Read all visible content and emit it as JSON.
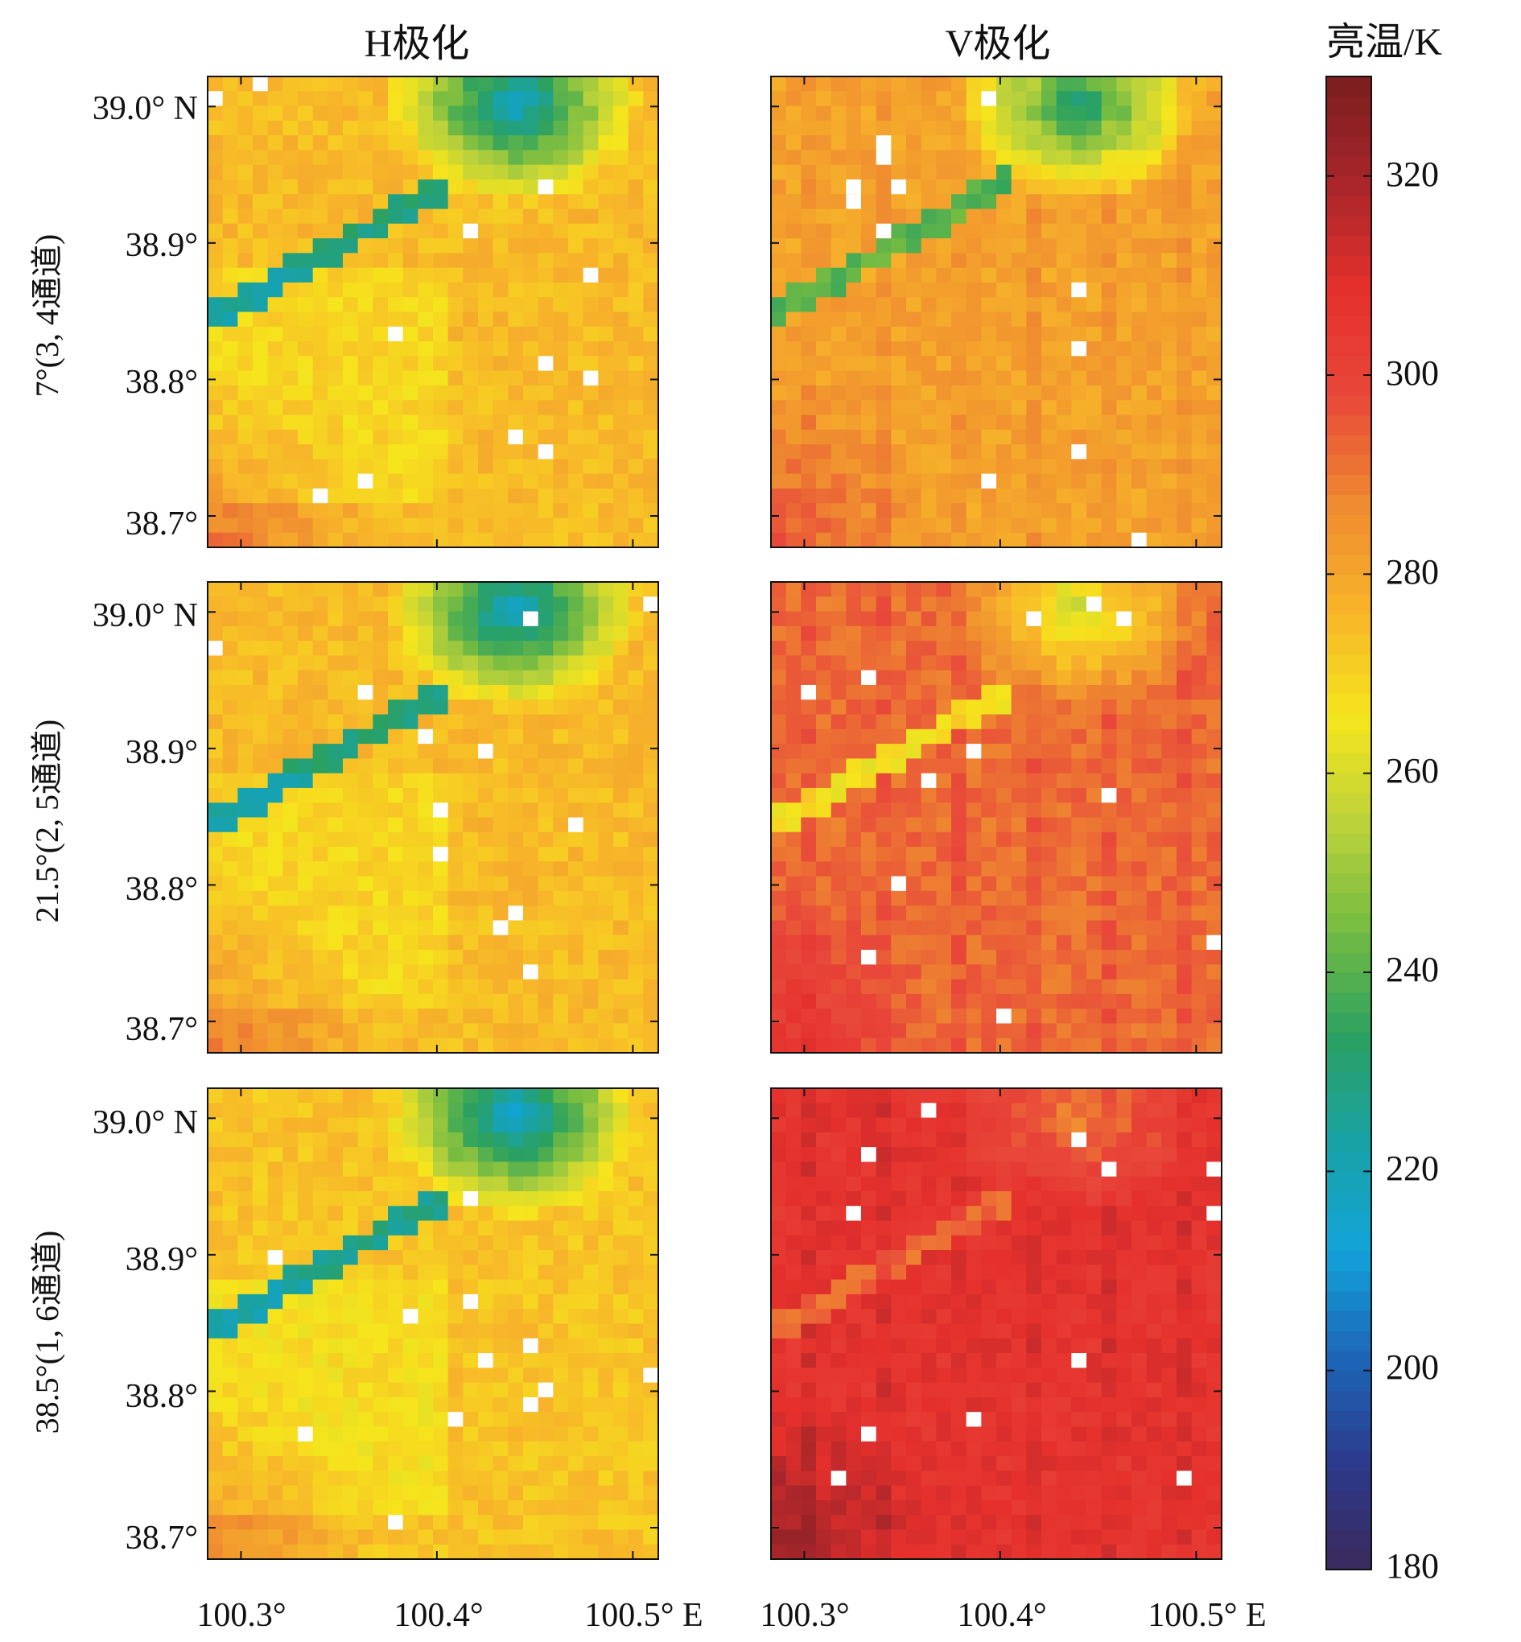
{
  "chart_data": {
    "type": "heatmap",
    "column_titles": [
      "H极化",
      "V极化"
    ],
    "row_labels": [
      "7°(3, 4通道)",
      "21.5°(2, 5通道)",
      "38.5°(1, 6通道)"
    ],
    "x_ticks": [
      "100.3°",
      "100.4°",
      "100.5° E"
    ],
    "x_tick_values": [
      100.3,
      100.4,
      100.5
    ],
    "xlim": [
      100.283,
      100.513
    ],
    "y_ticks": [
      "39.0° N",
      "38.9°",
      "38.8°",
      "38.7°"
    ],
    "y_tick_values": [
      39.0,
      38.9,
      38.8,
      38.7
    ],
    "ylim": [
      38.677,
      39.022
    ],
    "colorbar": {
      "title": "亮温/K",
      "range": [
        180,
        330
      ],
      "ticks": [
        "180",
        "200",
        "220",
        "240",
        "260",
        "280",
        "300",
        "320"
      ],
      "tick_values": [
        180,
        200,
        220,
        240,
        260,
        280,
        300,
        320
      ],
      "colors": [
        "#3b2a5c",
        "#2c3a8c",
        "#1c66b8",
        "#12a3d8",
        "#19a2a6",
        "#2ba160",
        "#74bb42",
        "#bcd23a",
        "#f6e51c",
        "#f7b42a",
        "#ef8a30",
        "#e8483a",
        "#e5302c",
        "#a8262a",
        "#7a1d1e"
      ]
    },
    "panels": [
      {
        "row": 0,
        "col": 0,
        "river_offset": 0.0,
        "cold_strength": 0.95,
        "base": 275
      },
      {
        "row": 0,
        "col": 1,
        "river_offset": -0.01,
        "cold_strength": 0.85,
        "base": 281
      },
      {
        "row": 1,
        "col": 0,
        "river_offset": 0.0,
        "cold_strength": 0.95,
        "base": 275
      },
      {
        "row": 1,
        "col": 1,
        "river_offset": 0.0,
        "cold_strength": 0.55,
        "base": 292
      },
      {
        "row": 2,
        "col": 0,
        "river_offset": 0.0,
        "cold_strength": 0.95,
        "base": 273
      },
      {
        "row": 2,
        "col": 1,
        "river_offset": 0.0,
        "cold_strength": 0.3,
        "base": 307
      }
    ]
  }
}
